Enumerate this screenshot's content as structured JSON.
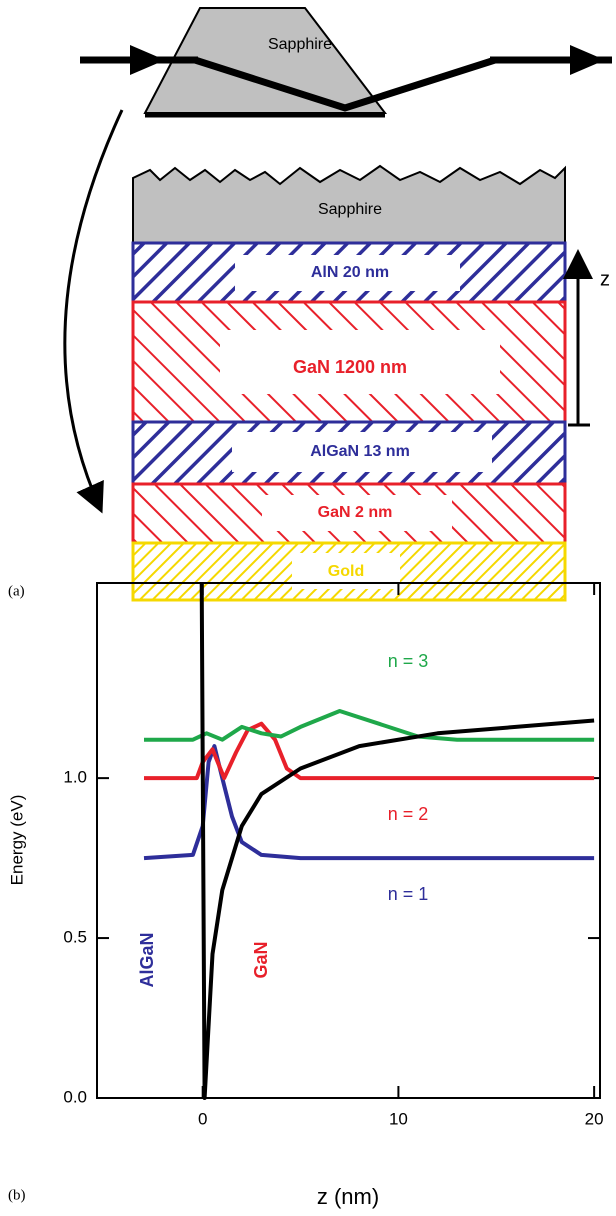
{
  "diagram": {
    "panel_label": "(a)",
    "prism_label": "Sapphire",
    "axis_label": "z",
    "layers": [
      {
        "label": "Sapphire",
        "color": "#000000"
      },
      {
        "label": "AlN 20 nm",
        "color": "#2e2e9a"
      },
      {
        "label": "GaN 1200 nm",
        "color": "#e8202a"
      },
      {
        "label": "AlGaN 13 nm",
        "color": "#2e2e9a"
      },
      {
        "label": "GaN 2 nm",
        "color": "#e8202a"
      },
      {
        "label": "Gold",
        "color": "#f5d800"
      }
    ]
  },
  "chart_data": {
    "type": "line",
    "panel_label": "(b)",
    "x_label": "z (nm)",
    "y_label": "Energy (eV)",
    "xlim": [
      -5.4,
      20.3
    ],
    "ylim": [
      0,
      1.61
    ],
    "xticks": [
      0,
      10,
      20
    ],
    "yticks": [
      {
        "value": 0,
        "label": "0.0"
      },
      0.5,
      {
        "value": 1,
        "label": "1.0"
      }
    ],
    "series": [
      {
        "color": "#000000",
        "x": [
          -0.05,
          0.1,
          0.5,
          1,
          2,
          3,
          5,
          8,
          12,
          16,
          20
        ],
        "values": [
          1.61,
          0,
          0.45,
          0.65,
          0.85,
          0.95,
          1.03,
          1.1,
          1.14,
          1.16,
          1.18
        ]
      },
      {
        "color": "#2e2e9a",
        "x": [
          -3,
          -0.5,
          0,
          0.3,
          0.6,
          1,
          1.5,
          2,
          3,
          5,
          20
        ],
        "values": [
          0.75,
          0.76,
          0.85,
          1.05,
          1.1,
          1.0,
          0.88,
          0.8,
          0.76,
          0.75,
          0.75
        ]
      },
      {
        "color": "#e8202a",
        "x": [
          -3,
          -0.3,
          0,
          0.5,
          1.1,
          1.7,
          2.3,
          3,
          3.7,
          4.3,
          5,
          20
        ],
        "values": [
          1.0,
          1.0,
          1.05,
          1.09,
          1.0,
          1.08,
          1.15,
          1.17,
          1.12,
          1.03,
          1.0,
          1.0
        ]
      },
      {
        "color": "#1fa84a",
        "x": [
          -3,
          -0.5,
          0.2,
          1,
          2,
          3,
          4,
          5,
          7,
          9,
          11,
          13,
          20
        ],
        "values": [
          1.12,
          1.12,
          1.14,
          1.12,
          1.16,
          1.14,
          1.13,
          1.16,
          1.21,
          1.17,
          1.13,
          1.12,
          1.12
        ]
      }
    ],
    "annotations": [
      {
        "text": "n = 3",
        "color": "#1fa84a"
      },
      {
        "text": "n = 2",
        "color": "#e8202a"
      },
      {
        "text": "n = 1",
        "color": "#2e2e9a"
      },
      {
        "text": "AlGaN",
        "color": "#2e2e9a"
      },
      {
        "text": "GaN",
        "color": "#e8202a"
      }
    ]
  }
}
